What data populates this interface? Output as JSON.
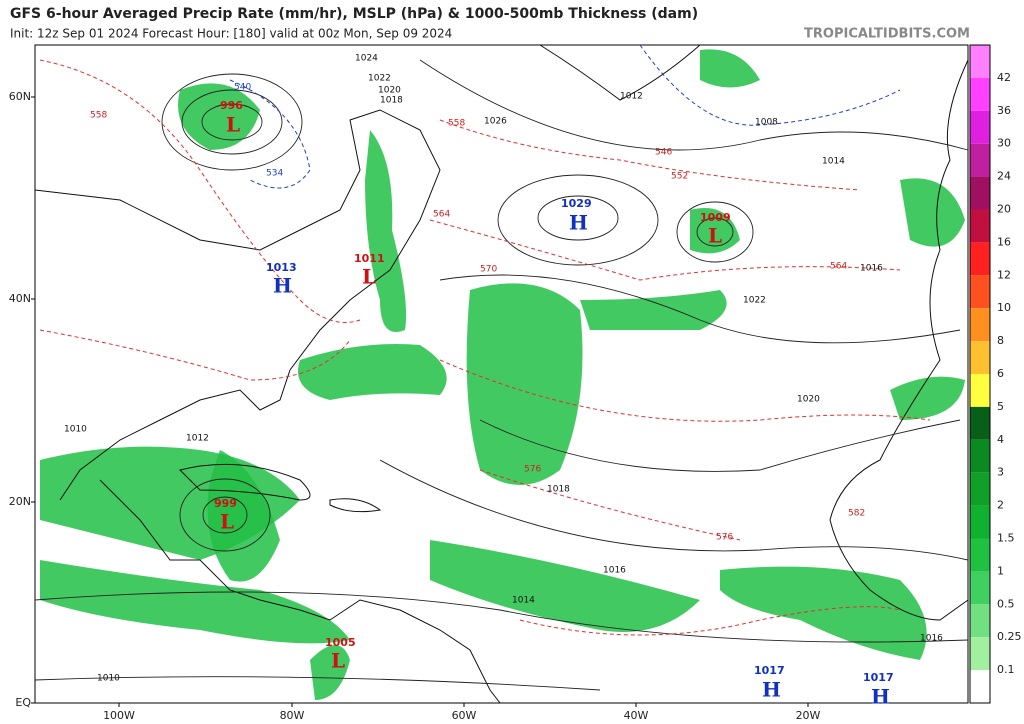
{
  "header": {
    "title": "GFS 6-hour Averaged Precip Rate (mm/hr), MSLP (hPa) & 1000-500mb Thickness (dam)",
    "subtitle": "Init: 12z Sep 01 2024   Forecast Hour: [180]   valid at 00z Mon, Sep 09 2024",
    "credit": "TROPICALTIDBITS.COM"
  },
  "map": {
    "lat_labels": [
      "60N",
      "40N",
      "20N",
      "EQ"
    ],
    "lon_labels": [
      "100W",
      "80W",
      "60W",
      "40W",
      "20W"
    ],
    "centers": [
      {
        "type": "L",
        "pressure": 996
      },
      {
        "type": "L",
        "pressure": 999
      },
      {
        "type": "L",
        "pressure": 1005
      },
      {
        "type": "L",
        "pressure": 1011
      },
      {
        "type": "L",
        "pressure": 1009
      },
      {
        "type": "H",
        "pressure": 1029
      },
      {
        "type": "H",
        "pressure": 1013
      },
      {
        "type": "H",
        "pressure": 1017
      },
      {
        "type": "H",
        "pressure": 1017
      }
    ],
    "isobar_labels": [
      1024,
      1022,
      1020,
      1018,
      1026,
      1012,
      1008,
      1014,
      1016,
      1022,
      1020,
      1018,
      1016,
      1010,
      1014,
      1012,
      1010,
      1016
    ],
    "thickness_labels": [
      540,
      546,
      552,
      558,
      564,
      570,
      576,
      582,
      534,
      558,
      564,
      576
    ]
  },
  "colorbar": {
    "labels": [
      42,
      36,
      30,
      24,
      20,
      16,
      12,
      10,
      8,
      6,
      5,
      4,
      3,
      2,
      1.5,
      1,
      0.5,
      0.25,
      0.1
    ]
  }
}
